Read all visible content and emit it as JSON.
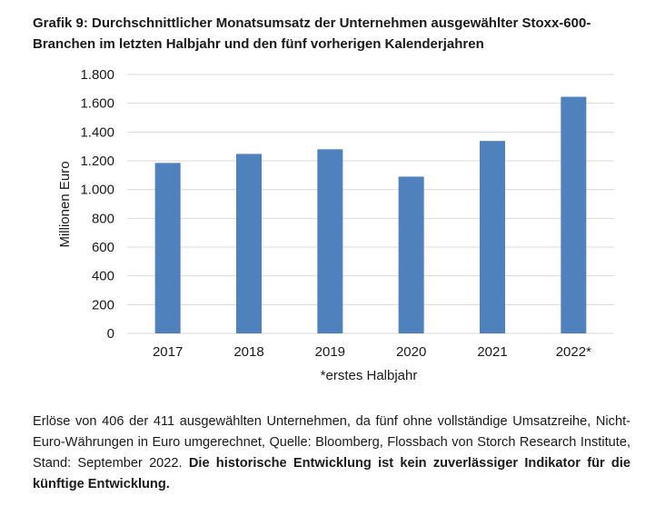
{
  "title": "Grafik 9: Durchschnittlicher Monatsumsatz der Unternehmen ausgewählter Stoxx-600-Branchen im letzten Halbjahr und den fünf vorherigen Kalenderjahren",
  "footnote": {
    "text": "Erlöse von 406 der 411 ausgewählten Unternehmen, da fünf ohne vollständige Umsatzreihe, Nicht-Euro-Währungen in Euro umgerechnet, Quelle: Bloomberg, Flossbach von Storch Research Institute, Stand: September 2022. ",
    "bold": "Die historische Entwicklung ist kein zuverlässiger Indikator für die künftige Entwicklung."
  },
  "chart_data": {
    "type": "bar",
    "categories": [
      "2017",
      "2018",
      "2019",
      "2020",
      "2021",
      "2022*"
    ],
    "values": [
      1185,
      1248,
      1280,
      1090,
      1338,
      1645
    ],
    "ylabel": "Millionen Euro",
    "xnote": "*erstes Halbjahr",
    "ylim": [
      0,
      1800
    ],
    "yticks": [
      0,
      200,
      400,
      600,
      800,
      1000,
      1200,
      1400,
      1600,
      1800
    ],
    "ytick_labels": [
      "0",
      "200",
      "400",
      "600",
      "800",
      "1.000",
      "1.200",
      "1.400",
      "1.600",
      "1.800"
    ],
    "bar_color": "#4f81bd",
    "grid": true,
    "grid_color": "#d9d9d9"
  }
}
